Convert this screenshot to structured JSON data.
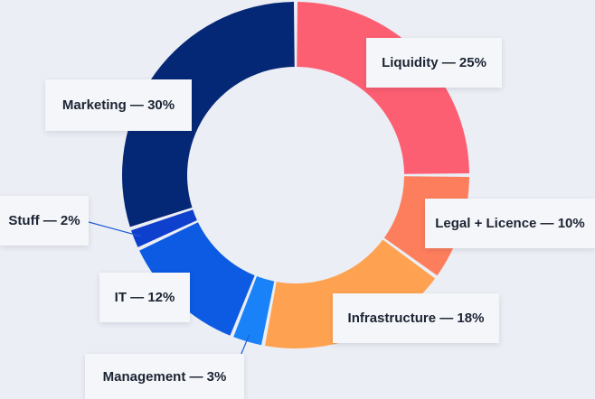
{
  "chart_data": {
    "type": "pie",
    "variant": "donut",
    "slices": [
      {
        "name": "Liquidity",
        "value": 25,
        "label": "Liquidity — 25%",
        "color": "#fd5f72"
      },
      {
        "name": "Legal + Licence",
        "value": 10,
        "label": "Legal + Licence — 10%",
        "color": "#fd7e5c"
      },
      {
        "name": "Infrastructure",
        "value": 18,
        "label": "Infrastructure — 18%",
        "color": "#fea252"
      },
      {
        "name": "Management",
        "value": 3,
        "label": "Management — 3%",
        "color": "#1a82f9"
      },
      {
        "name": "IT",
        "value": 12,
        "label": "IT — 12%",
        "color": "#0d5ae3"
      },
      {
        "name": "Stuff",
        "value": 2,
        "label": "Stuff — 2%",
        "color": "#0e3fcd"
      },
      {
        "name": "Marketing",
        "value": 30,
        "label": "Marketing — 30%",
        "color": "#052876"
      }
    ],
    "title": "",
    "legend": "none"
  },
  "colors": {
    "background": "#eceef5",
    "label_background": "#f5f6f9",
    "label_text": "#1b2433",
    "leader_line": "#1e5fd6"
  }
}
